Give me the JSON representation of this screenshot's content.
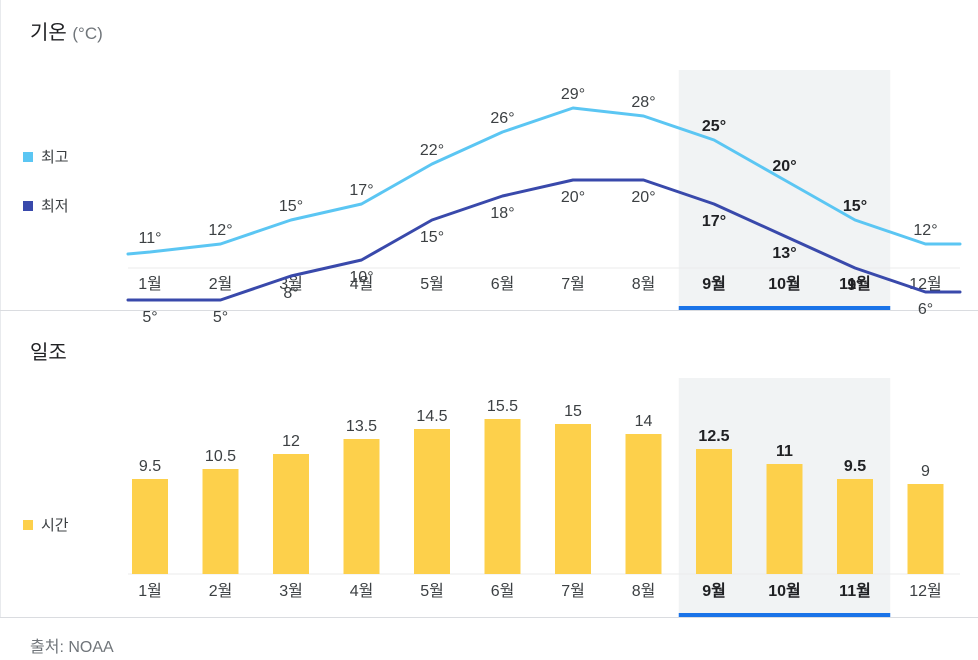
{
  "temperature": {
    "title": "기온",
    "unit": "(°C)",
    "legend": [
      {
        "label": "최고",
        "color": "#5bc6f3"
      },
      {
        "label": "최저",
        "color": "#3949ab"
      }
    ]
  },
  "sunshine": {
    "title": "일조",
    "legend": [
      {
        "label": "시간",
        "color": "#fdd04b"
      }
    ]
  },
  "source": "출처: NOAA",
  "highlight": {
    "months": [
      "9월",
      "10월",
      "11월"
    ],
    "band_color": "#f1f3f4",
    "underline_color": "#1a73e8"
  },
  "chart_data": [
    {
      "type": "line",
      "title": "기온 (°C)",
      "categories": [
        "1월",
        "2월",
        "3월",
        "4월",
        "5월",
        "6월",
        "7월",
        "8월",
        "9월",
        "10월",
        "11월",
        "12월"
      ],
      "series": [
        {
          "name": "최고",
          "color": "#5bc6f3",
          "values": [
            11,
            12,
            15,
            17,
            22,
            26,
            29,
            28,
            25,
            20,
            15,
            12
          ],
          "labels": [
            "11°",
            "12°",
            "15°",
            "17°",
            "22°",
            "26°",
            "29°",
            "28°",
            "25°",
            "20°",
            "15°",
            "12°"
          ]
        },
        {
          "name": "최저",
          "color": "#3949ab",
          "values": [
            5,
            5,
            8,
            10,
            15,
            18,
            20,
            20,
            17,
            13,
            9,
            6
          ],
          "labels": [
            "5°",
            "5°",
            "8°",
            "10°",
            "15°",
            "18°",
            "20°",
            "20°",
            "17°",
            "13°",
            "9°",
            "6°"
          ]
        }
      ],
      "highlighted_categories": [
        "9월",
        "10월",
        "11월"
      ],
      "grid": false
    },
    {
      "type": "bar",
      "title": "일조",
      "categories": [
        "1월",
        "2월",
        "3월",
        "4월",
        "5월",
        "6월",
        "7월",
        "8월",
        "9월",
        "10월",
        "11월",
        "12월"
      ],
      "series": [
        {
          "name": "시간",
          "color": "#fdd04b",
          "values": [
            9.5,
            10.5,
            12,
            13.5,
            14.5,
            15.5,
            15,
            14,
            12.5,
            11,
            9.5,
            9
          ],
          "labels": [
            "9.5",
            "10.5",
            "12",
            "13.5",
            "14.5",
            "15.5",
            "15",
            "14",
            "12.5",
            "11",
            "9.5",
            "9"
          ]
        }
      ],
      "highlighted_categories": [
        "9월",
        "10월",
        "11월"
      ],
      "grid": false
    }
  ]
}
